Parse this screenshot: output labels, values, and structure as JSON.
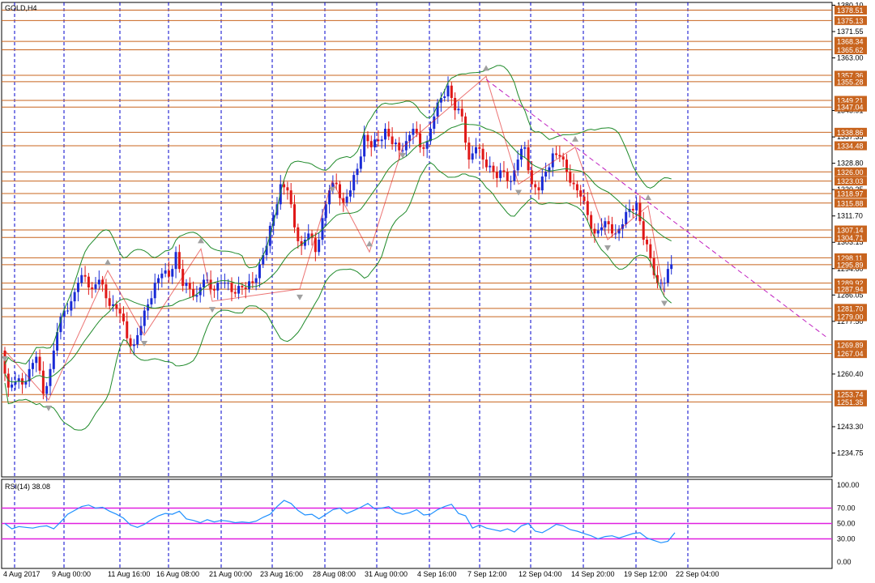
{
  "symbol_label": "GOLD,H4",
  "rsi_label": "RSI(14) 38.08",
  "colors": {
    "bull": "#1a2bd6",
    "bear": "#e01818",
    "level_line": "#c8641e",
    "level_box": "#c8641e",
    "band": "#1f8a2a",
    "trend": "#c020c0",
    "rsi_line": "#1e90ff",
    "rsi_level": "#e020e0",
    "vgrid": "#0000cc",
    "zigzag": "#e01818",
    "fractal": "#a0a0a0"
  },
  "chart_data": {
    "type": "candlestick",
    "price_axis_ticks": [
      "1380.10",
      "1371.55",
      "1363.00",
      "1345.91",
      "1337.35",
      "1328.80",
      "1320.25",
      "1311.70",
      "1303.15",
      "1294.60",
      "1286.05",
      "1277.50",
      "1260.40",
      "1243.30",
      "1234.75"
    ],
    "time_axis_labels": [
      "4 Aug 2017",
      "9 Aug 00:00",
      "11 Aug 16:00",
      "16 Aug 08:00",
      "21 Aug 00:00",
      "23 Aug 16:00",
      "28 Aug 08:00",
      "31 Aug 00:00",
      "4 Sep 16:00",
      "7 Sep 12:00",
      "12 Sep 04:00",
      "14 Sep 20:00",
      "19 Sep 12:00",
      "22 Sep 04:00"
    ],
    "price_levels": [
      "1378.51",
      "1375.13",
      "1368.34",
      "1365.62",
      "1357.36",
      "1355.28",
      "1349.21",
      "1347.04",
      "1338.86",
      "1334.48",
      "1326.00",
      "1323.03",
      "1318.97",
      "1315.88",
      "1307.14",
      "1304.71",
      "1298.11",
      "1295.89",
      "1289.92",
      "1287.94",
      "1281.70",
      "1279.00",
      "1269.89",
      "1267.04",
      "1253.74",
      "1251.35"
    ],
    "close_path": [
      1268,
      1256,
      1258,
      1257,
      1262,
      1266,
      1254,
      1262,
      1274,
      1281,
      1284,
      1290,
      1292,
      1288,
      1291,
      1285,
      1283,
      1280,
      1272,
      1270,
      1276,
      1283,
      1290,
      1293,
      1292,
      1300,
      1289,
      1288,
      1286,
      1291,
      1288,
      1290,
      1290,
      1287,
      1289,
      1288,
      1290,
      1296,
      1302,
      1312,
      1322,
      1320,
      1308,
      1302,
      1306,
      1300,
      1311,
      1320,
      1322,
      1316,
      1320,
      1327,
      1338,
      1334,
      1336,
      1340,
      1335,
      1333,
      1336,
      1340,
      1334,
      1336,
      1344,
      1350,
      1354,
      1346,
      1344,
      1330,
      1334,
      1330,
      1328,
      1324,
      1326,
      1323,
      1330,
      1334,
      1322,
      1320,
      1326,
      1332,
      1331,
      1326,
      1322,
      1318,
      1312,
      1306,
      1308,
      1309,
      1306,
      1309,
      1314,
      1316,
      1304,
      1298,
      1290,
      1290,
      1296
    ],
    "rsi_axis_ticks": [
      "100.00",
      "70.00",
      "50.00",
      "30.00",
      "0.00"
    ],
    "rsi_levels": [
      70,
      50,
      30
    ],
    "rsi_last": 38.08,
    "rsi_series": [
      50,
      43,
      46,
      45,
      44,
      46,
      47,
      43,
      52,
      62,
      67,
      72,
      74,
      70,
      71,
      66,
      62,
      57,
      48,
      45,
      49,
      55,
      60,
      63,
      62,
      66,
      56,
      54,
      51,
      55,
      52,
      54,
      53,
      51,
      52,
      51,
      53,
      58,
      62,
      72,
      80,
      76,
      67,
      61,
      62,
      56,
      62,
      68,
      70,
      63,
      67,
      71,
      76,
      69,
      70,
      72,
      65,
      62,
      64,
      68,
      61,
      62,
      68,
      72,
      75,
      63,
      60,
      44,
      48,
      44,
      42,
      40,
      43,
      39,
      47,
      50,
      40,
      38,
      43,
      49,
      47,
      42,
      40,
      37,
      34,
      30,
      33,
      34,
      31,
      34,
      37,
      38,
      31,
      28,
      25,
      27,
      38
    ]
  }
}
